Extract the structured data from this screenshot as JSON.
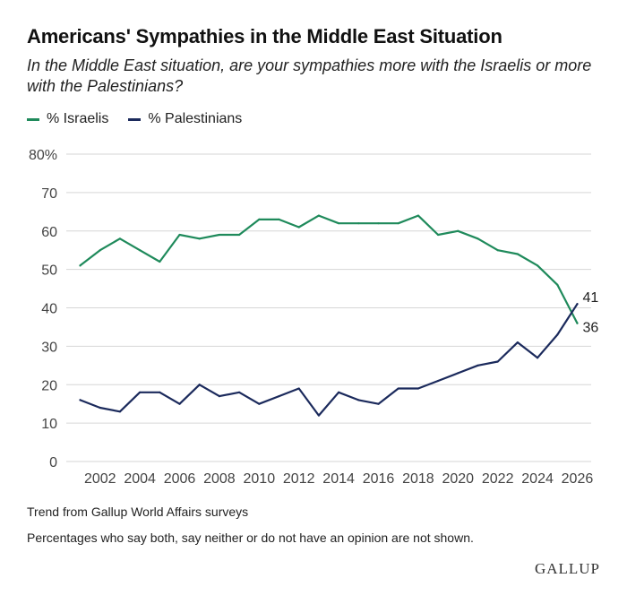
{
  "title": "Americans' Sympathies in the Middle East Situation",
  "subtitle": "In the Middle East situation, are your sympathies more with the Israelis or more with the Palestinians?",
  "legend": [
    {
      "label": "% Israelis",
      "color": "#1f8a5b"
    },
    {
      "label": "% Palestinians",
      "color": "#1b2a5c"
    }
  ],
  "notes": {
    "trend": "Trend from Gallup World Affairs surveys",
    "caveat": "Percentages who say both, say neither or do not have an opinion are not shown."
  },
  "logo": "GALLUP",
  "chart_data": {
    "type": "line",
    "x": [
      2001,
      2002,
      2003,
      2004,
      2005,
      2006,
      2007,
      2008,
      2009,
      2010,
      2011,
      2012,
      2013,
      2014,
      2015,
      2016,
      2017,
      2018,
      2019,
      2020,
      2021,
      2022,
      2023,
      2024,
      2025,
      2026
    ],
    "series": [
      {
        "name": "% Israelis",
        "color": "#1f8a5b",
        "values": [
          51,
          55,
          58,
          55,
          52,
          59,
          58,
          59,
          59,
          63,
          63,
          61,
          64,
          62,
          62,
          62,
          62,
          64,
          59,
          60,
          58,
          55,
          54,
          51,
          46,
          36
        ],
        "end_label": "36"
      },
      {
        "name": "% Palestinians",
        "color": "#1b2a5c",
        "values": [
          16,
          14,
          13,
          18,
          18,
          15,
          20,
          17,
          18,
          15,
          17,
          19,
          12,
          18,
          16,
          15,
          19,
          19,
          21,
          23,
          25,
          26,
          31,
          27,
          33,
          41
        ],
        "end_label": "41"
      }
    ],
    "ylim": [
      0,
      80
    ],
    "y_ticks": [
      "0",
      "10",
      "20",
      "30",
      "40",
      "50",
      "60",
      "70",
      "80%"
    ],
    "x_ticks": [
      "2002",
      "2004",
      "2006",
      "2008",
      "2010",
      "2012",
      "2014",
      "2016",
      "2018",
      "2020",
      "2022",
      "2024",
      "2026"
    ],
    "grid": true,
    "legend_position": "top-left"
  }
}
